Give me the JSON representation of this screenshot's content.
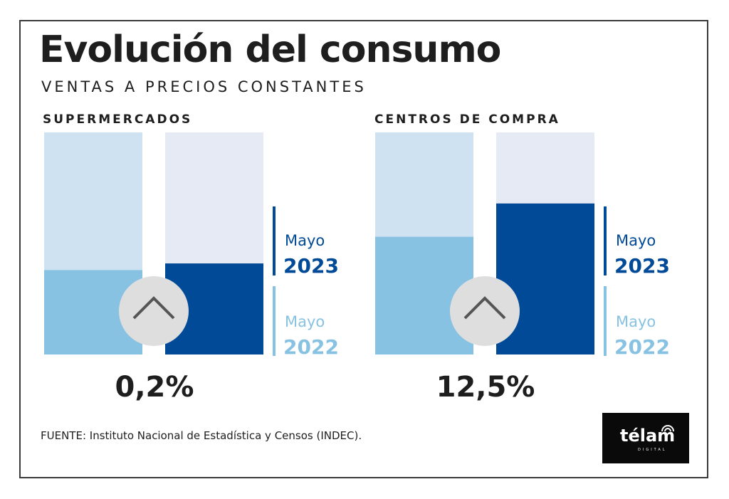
{
  "header": {
    "title": "Evolución del consumo",
    "subtitle": "VENTAS A PRECIOS CONSTANTES"
  },
  "colors": {
    "track_2023": "#e6eaf4",
    "bar_2023": "#004a97",
    "track_2022": "#cfe2f1",
    "bar_2022": "#87c2e2",
    "arrow_circle": "#dedede",
    "arrow_stroke": "#555555"
  },
  "legend": {
    "month_2023": "Mayo",
    "year_2023": "2023",
    "month_2022": "Mayo",
    "year_2022": "2022"
  },
  "chart_data": [
    {
      "type": "bar",
      "title": "SUPERMERCADOS",
      "categories": [
        "Mayo 2022",
        "Mayo 2023"
      ],
      "values": [
        0.38,
        0.41
      ],
      "change_label": "0,2%",
      "trend": "up"
    },
    {
      "type": "bar",
      "title": "CENTROS DE COMPRA",
      "categories": [
        "Mayo 2022",
        "Mayo 2023"
      ],
      "values": [
        0.53,
        0.68
      ],
      "change_label": "12,5%",
      "trend": "up"
    }
  ],
  "footer": {
    "source": "FUENTE: Instituto Nacional de Estadística y Censos (INDEC).",
    "logo_name": "télam",
    "logo_sub": "DIGITAL"
  }
}
